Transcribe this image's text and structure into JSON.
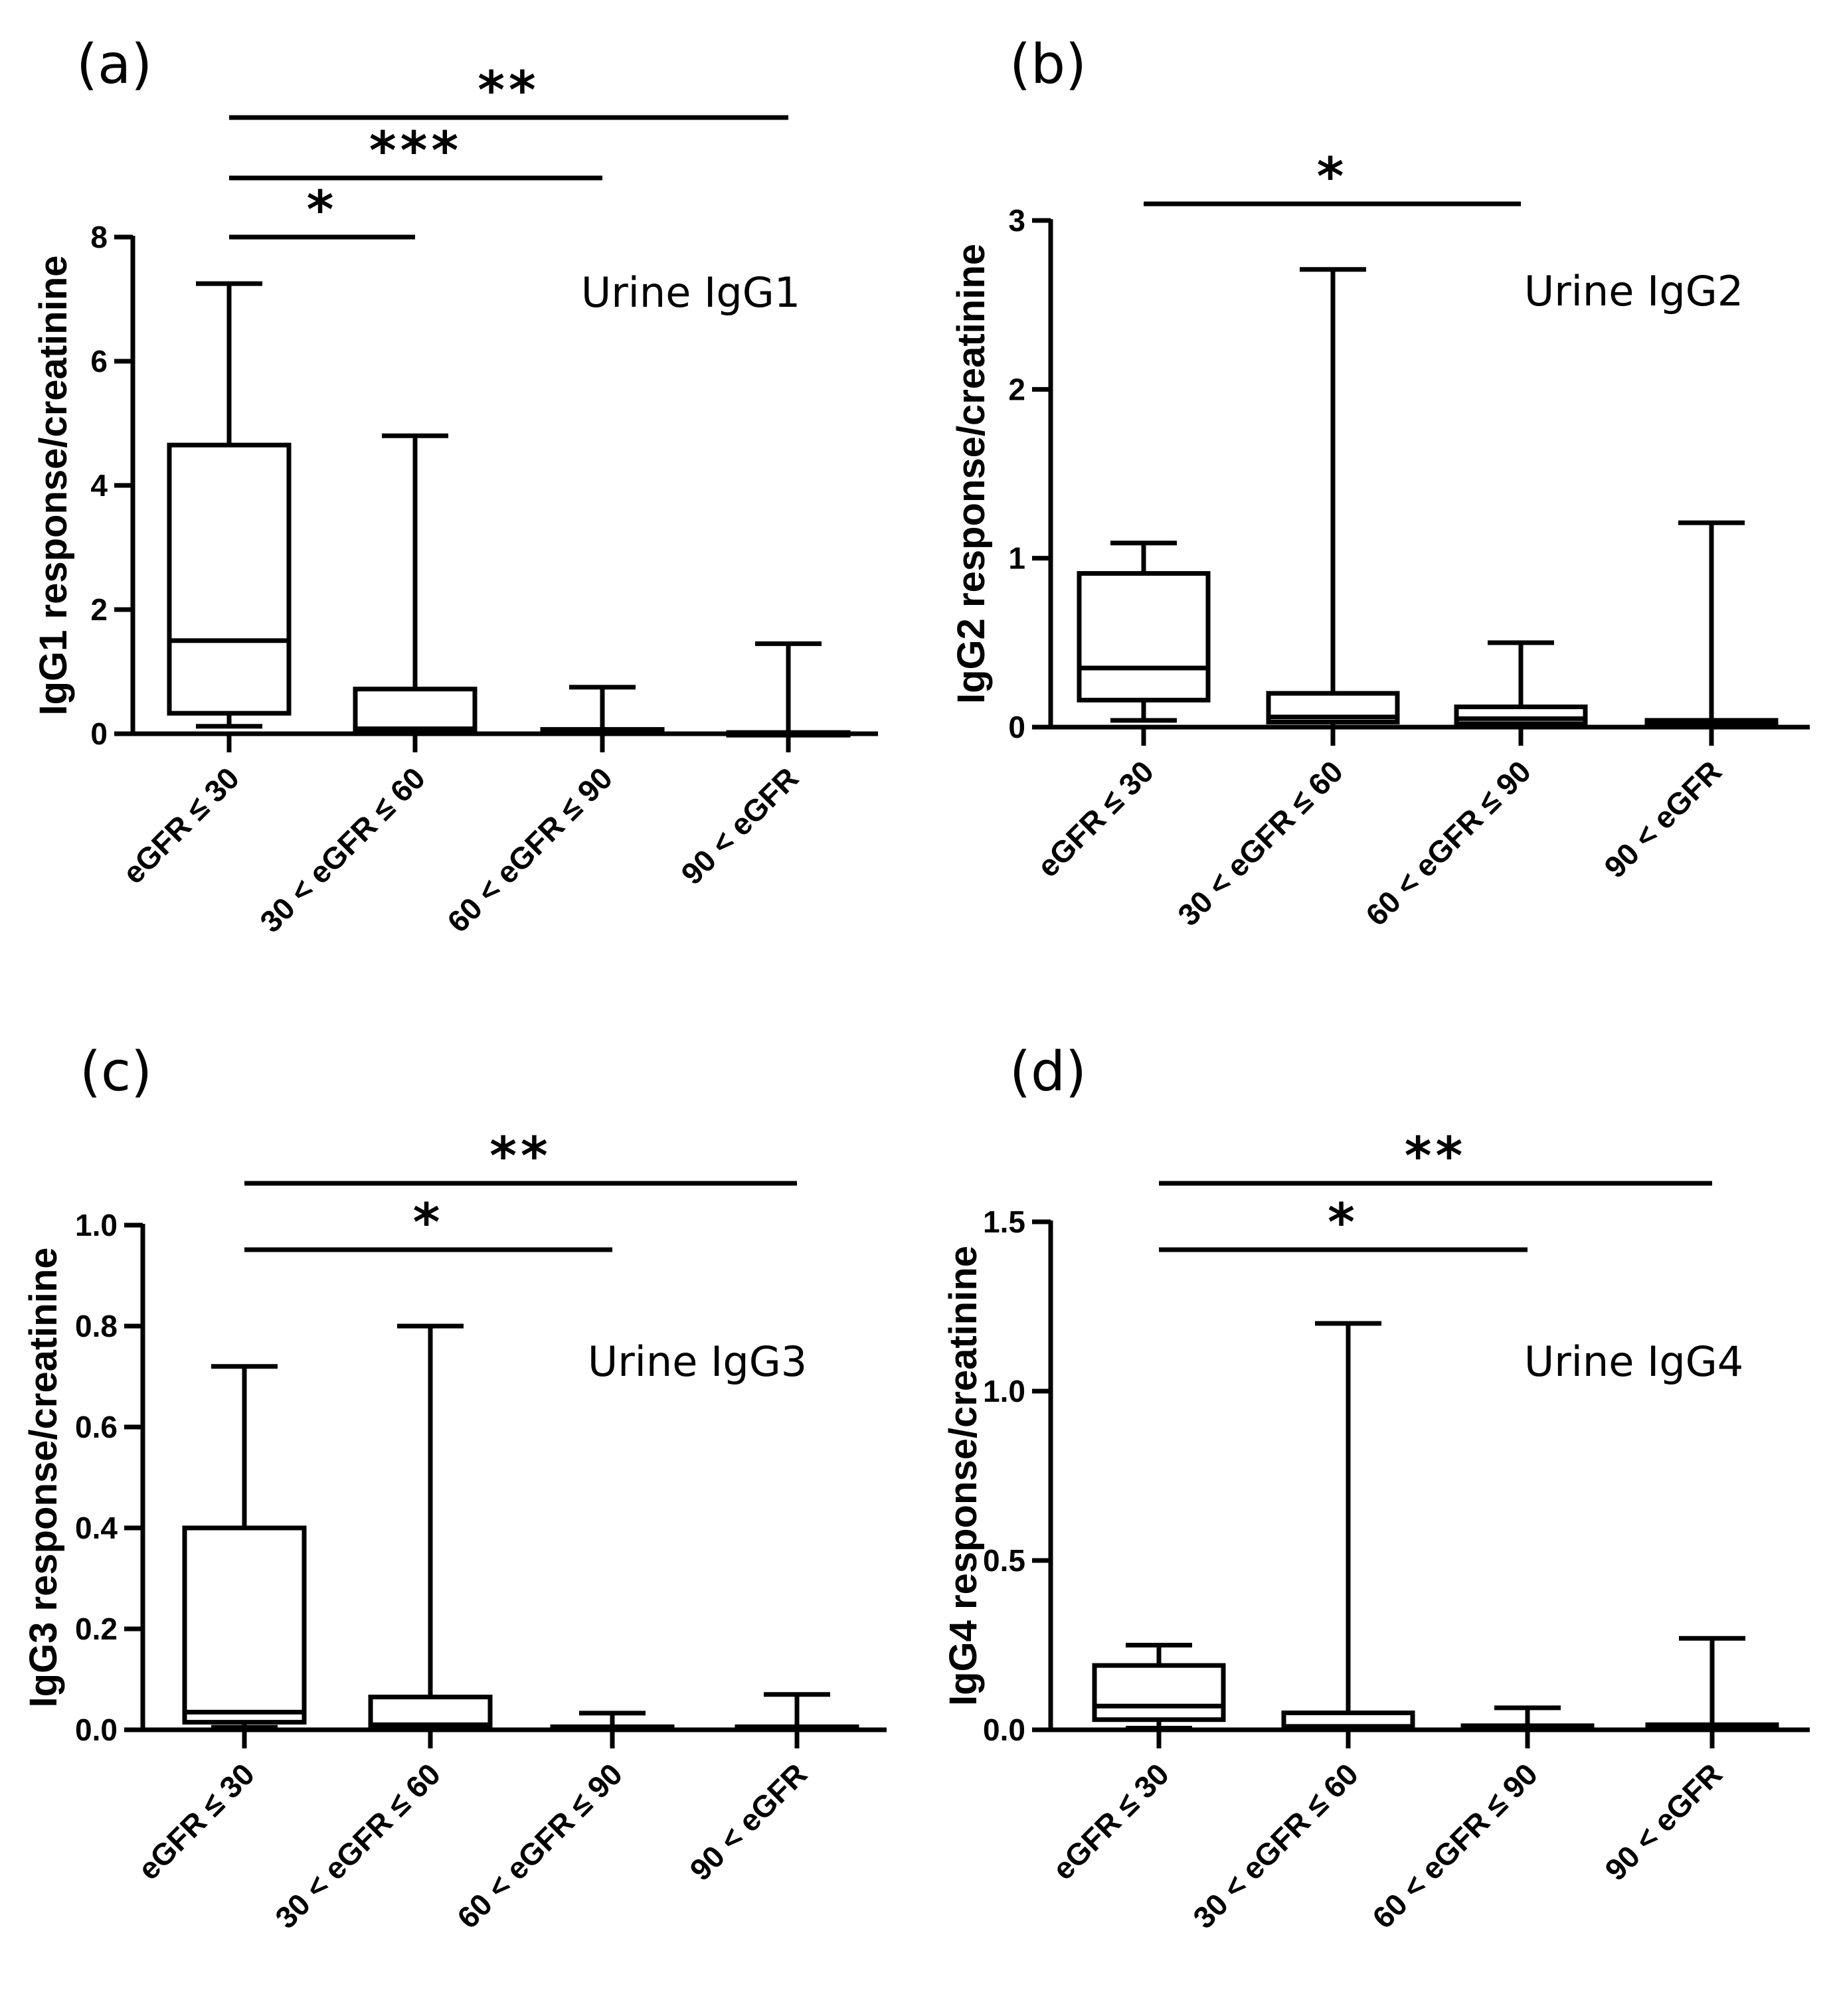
{
  "chart_data": [
    {
      "type": "box",
      "panel_label": "(a)",
      "title": "Urine IgG1",
      "ylabel": "IgG1 response/creatinine",
      "ylim": [
        0,
        8
      ],
      "yticks": [
        0,
        2,
        4,
        6,
        8
      ],
      "ytick_labels": [
        "0",
        "2",
        "4",
        "6",
        "8"
      ],
      "categories": [
        "eGFR ≤ 30",
        "30 < eGFR ≤ 60",
        "60 < eGFR ≤ 90",
        "90 < eGFR"
      ],
      "boxes": [
        {
          "min": 0.12,
          "q1": 0.33,
          "median": 1.5,
          "q3": 4.65,
          "max": 7.25
        },
        {
          "min": 0.0,
          "q1": 0.05,
          "median": 0.08,
          "q3": 0.72,
          "max": 4.8
        },
        {
          "min": 0.0,
          "q1": 0.01,
          "median": 0.03,
          "q3": 0.07,
          "max": 0.75
        },
        {
          "min": 0.0,
          "q1": 0.0,
          "median": 0.01,
          "q3": 0.02,
          "max": 1.45
        }
      ],
      "significance": [
        {
          "from": 0,
          "to": 1,
          "label": "*"
        },
        {
          "from": 0,
          "to": 2,
          "label": "***"
        },
        {
          "from": 0,
          "to": 3,
          "label": "**"
        }
      ]
    },
    {
      "type": "box",
      "panel_label": "(b)",
      "title": "Urine IgG2",
      "ylabel": "IgG2 response/creatinine",
      "ylim": [
        0,
        3
      ],
      "yticks": [
        0,
        1,
        2,
        3
      ],
      "ytick_labels": [
        "0",
        "1",
        "2",
        "3"
      ],
      "categories": [
        "eGFR ≤ 30",
        "30 < eGFR ≤ 60",
        "60 < eGFR ≤ 90",
        "90 < eGFR"
      ],
      "boxes": [
        {
          "min": 0.04,
          "q1": 0.16,
          "median": 0.35,
          "q3": 0.91,
          "max": 1.09
        },
        {
          "min": 0.0,
          "q1": 0.03,
          "median": 0.06,
          "q3": 0.2,
          "max": 2.71
        },
        {
          "min": 0.0,
          "q1": 0.02,
          "median": 0.05,
          "q3": 0.12,
          "max": 0.5
        },
        {
          "min": 0.0,
          "q1": 0.01,
          "median": 0.02,
          "q3": 0.04,
          "max": 1.21
        }
      ],
      "significance": [
        {
          "from": 0,
          "to": 2,
          "label": "*"
        }
      ]
    },
    {
      "type": "box",
      "panel_label": "(c)",
      "title": "Urine IgG3",
      "ylabel": "IgG3 response/creatinine",
      "ylim": [
        0,
        1.0
      ],
      "yticks": [
        0,
        0.2,
        0.4,
        0.6,
        0.8,
        1.0
      ],
      "ytick_labels": [
        "0.0",
        "0.2",
        "0.4",
        "0.6",
        "0.8",
        "1.0"
      ],
      "categories": [
        "eGFR ≤ 30",
        "30 < eGFR ≤ 60",
        "60 < eGFR ≤ 90",
        "90 < eGFR"
      ],
      "boxes": [
        {
          "min": 0.005,
          "q1": 0.015,
          "median": 0.035,
          "q3": 0.4,
          "max": 0.72
        },
        {
          "min": 0.0,
          "q1": 0.005,
          "median": 0.01,
          "q3": 0.065,
          "max": 0.8
        },
        {
          "min": 0.0,
          "q1": 0.001,
          "median": 0.003,
          "q3": 0.006,
          "max": 0.033
        },
        {
          "min": 0.0,
          "q1": 0.001,
          "median": 0.003,
          "q3": 0.006,
          "max": 0.07
        }
      ],
      "significance": [
        {
          "from": 0,
          "to": 2,
          "label": "*"
        },
        {
          "from": 0,
          "to": 3,
          "label": "**"
        }
      ]
    },
    {
      "type": "box",
      "panel_label": "(d)",
      "title": "Urine IgG4",
      "ylabel": "IgG4 response/creatinine",
      "ylim": [
        0,
        1.5
      ],
      "yticks": [
        0,
        0.5,
        1.0,
        1.5
      ],
      "ytick_labels": [
        "0.0",
        "0.5",
        "1.0",
        "1.5"
      ],
      "categories": [
        "eGFR ≤ 30",
        "30 < eGFR ≤ 60",
        "60 < eGFR ≤ 90",
        "90 < eGFR"
      ],
      "boxes": [
        {
          "min": 0.005,
          "q1": 0.03,
          "median": 0.07,
          "q3": 0.19,
          "max": 0.25
        },
        {
          "min": 0.0,
          "q1": 0.005,
          "median": 0.01,
          "q3": 0.05,
          "max": 1.2
        },
        {
          "min": 0.0,
          "q1": 0.002,
          "median": 0.005,
          "q3": 0.012,
          "max": 0.065
        },
        {
          "min": 0.0,
          "q1": 0.002,
          "median": 0.005,
          "q3": 0.015,
          "max": 0.27
        }
      ],
      "significance": [
        {
          "from": 0,
          "to": 2,
          "label": "*"
        },
        {
          "from": 0,
          "to": 3,
          "label": "**"
        }
      ]
    }
  ]
}
